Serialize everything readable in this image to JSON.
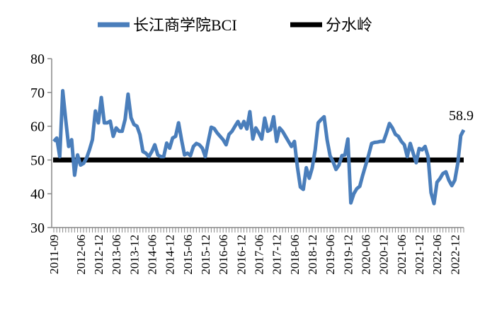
{
  "chart_data": {
    "type": "line",
    "title": "",
    "xlabel": "",
    "ylabel": "",
    "ylim": [
      30,
      80
    ],
    "yticks": [
      30,
      40,
      50,
      60,
      70,
      80
    ],
    "grid": false,
    "legend_placement": "top",
    "x_start": "2011-09",
    "x_end": "2023-03",
    "x_tick_labels": [
      "2011-09",
      "2012-06",
      "2012-12",
      "2013-06",
      "2013-12",
      "2014-06",
      "2014-12",
      "2015-06",
      "2015-12",
      "2016-06",
      "2016-12",
      "2017-06",
      "2017-12",
      "2018-06",
      "2018-12",
      "2019-06",
      "2019-12",
      "2020-06",
      "2020-12",
      "2021-06",
      "2021-12",
      "2022-06",
      "2022-12"
    ],
    "series": [
      {
        "name": "长江商学院BCI",
        "color": "#4A7EBB",
        "values": [
          55.5,
          56.5,
          51,
          70.5,
          62,
          54,
          56,
          45.5,
          51.5,
          48.5,
          49,
          50.5,
          53,
          56,
          64.5,
          61,
          68.5,
          61,
          61,
          61.5,
          57,
          59.5,
          58.5,
          58.5,
          62,
          69.5,
          62.5,
          60.5,
          60,
          57.5,
          52.5,
          52,
          51,
          52.5,
          54.5,
          51.5,
          51,
          51,
          55,
          53.5,
          56.5,
          57,
          61,
          56,
          51.5,
          52,
          51.3,
          54,
          54.9,
          54.5,
          53.5,
          51,
          55.5,
          59.7,
          59.3,
          58,
          57,
          56,
          54.5,
          57.6,
          58.5,
          60,
          61.4,
          59.5,
          61.4,
          59.2,
          64.3,
          56.2,
          59.5,
          58,
          56.2,
          62.4,
          58.5,
          59,
          62.8,
          55.5,
          59.5,
          58.5,
          57,
          55.5,
          54,
          55.5,
          48,
          42,
          41.3,
          47.7,
          44.6,
          47.7,
          53,
          61,
          62,
          62.8,
          56,
          51.3,
          49.5,
          47.2,
          48.5,
          51.3,
          51.5,
          56.2,
          37.3,
          40,
          41.5,
          42.2,
          45.5,
          48.5,
          51.5,
          54.9,
          55.2,
          55.3,
          55.5,
          55.5,
          58,
          60.8,
          59.5,
          57.6,
          57,
          55.5,
          54.5,
          51,
          54.9,
          52,
          49.2,
          53.4,
          53,
          54,
          51,
          40.3,
          37.1,
          43.4,
          44.5,
          46,
          46.5,
          44,
          42.4,
          44,
          49,
          57.2,
          58.9
        ]
      },
      {
        "name": "分水岭",
        "color": "#000000",
        "constant": 50
      }
    ],
    "annotations": [
      {
        "text": "58.9",
        "at": "2023-03"
      }
    ]
  }
}
